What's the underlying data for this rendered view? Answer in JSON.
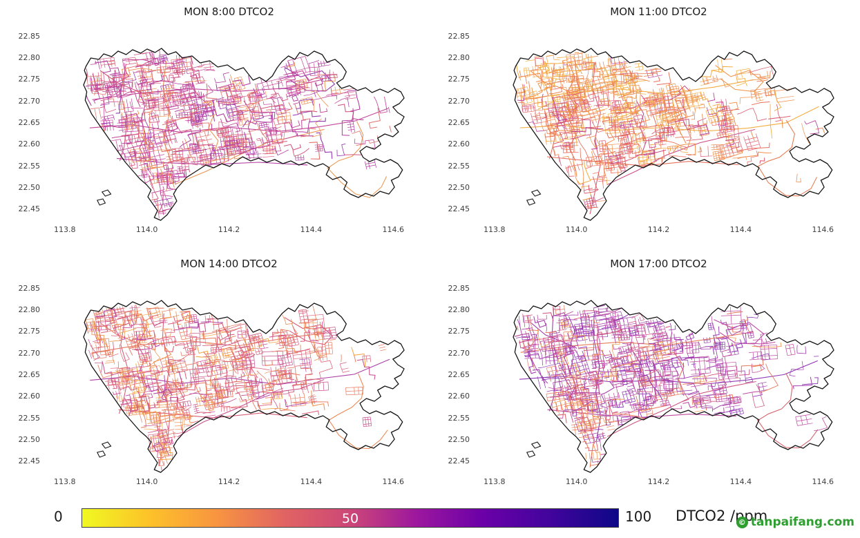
{
  "figure": {
    "colorbar": {
      "min_label": "0",
      "mid_label": "50",
      "max_label": "100",
      "unit_label": "DTCO2 /ppm",
      "gradient": [
        "#f0f921",
        "#fdc229",
        "#f89540",
        "#e16462",
        "#cc4778",
        "#9c179e",
        "#6a00a8",
        "#41049d",
        "#0d0887"
      ]
    },
    "watermark": {
      "text": "tanpaifang.com",
      "logo_glyph": "©",
      "color": "#2f9e31"
    }
  },
  "chart_data": [
    {
      "type": "heatmap",
      "title": "MON 8:00 DTCO2",
      "time": "MON 8:00",
      "variable": "DTCO2",
      "unit": "ppm",
      "xlim": [
        113.75,
        114.65
      ],
      "ylim": [
        22.42,
        22.88
      ],
      "xticks": [
        "113.8",
        "114.0",
        "114.2",
        "114.4",
        "114.6"
      ],
      "yticks": [
        "22.85",
        "22.80",
        "22.75",
        "22.70",
        "22.65",
        "22.60",
        "22.55",
        "22.50",
        "22.45"
      ],
      "colormap": "plasma reversed (yellow=0 to dark blue=100)",
      "value_min": 0,
      "value_max": 100,
      "approx_value_range_ppm": [
        40,
        70
      ],
      "road_colors": [
        {
          "c": "#c2459a",
          "w": 4
        },
        {
          "c": "#b03aa0",
          "w": 2
        },
        {
          "c": "#d4577f",
          "w": 3
        },
        {
          "c": "#e0706a",
          "w": 2
        },
        {
          "c": "#ef9355",
          "w": 1
        },
        {
          "c": "#9438ae",
          "w": 1
        }
      ],
      "peninsula_color": "#eb9a55"
    },
    {
      "type": "heatmap",
      "title": "MON 11:00 DTCO2",
      "time": "MON 11:00",
      "variable": "DTCO2",
      "unit": "ppm",
      "xlim": [
        113.75,
        114.65
      ],
      "ylim": [
        22.42,
        22.88
      ],
      "xticks": [
        "113.8",
        "114.0",
        "114.2",
        "114.4",
        "114.6"
      ],
      "yticks": [
        "22.85",
        "22.80",
        "22.75",
        "22.70",
        "22.65",
        "22.60",
        "22.55",
        "22.50",
        "22.45"
      ],
      "colormap": "plasma reversed (yellow=0 to dark blue=100)",
      "value_min": 0,
      "value_max": 100,
      "approx_value_range_ppm": [
        25,
        55
      ],
      "road_colors": [
        {
          "c": "#ef8e4d",
          "w": 3
        },
        {
          "c": "#e8705c",
          "w": 3
        },
        {
          "c": "#dd5f72",
          "w": 2
        },
        {
          "c": "#f3ad43",
          "w": 2
        },
        {
          "c": "#cb4f88",
          "w": 1.5
        },
        {
          "c": "#b53f9f",
          "w": 0.5
        }
      ],
      "north_colors": [
        "#f3ad43",
        "#f0974b",
        "#ea8556"
      ],
      "peninsula_color": "#e87f55"
    },
    {
      "type": "heatmap",
      "title": "MON 14:00 DTCO2",
      "time": "MON 14:00",
      "variable": "DTCO2",
      "unit": "ppm",
      "xlim": [
        113.75,
        114.65
      ],
      "ylim": [
        22.42,
        22.88
      ],
      "xticks": [
        "113.8",
        "114.0",
        "114.2",
        "114.4",
        "114.6"
      ],
      "yticks": [
        "22.85",
        "22.80",
        "22.75",
        "22.70",
        "22.65",
        "22.60",
        "22.55",
        "22.50",
        "22.45"
      ],
      "colormap": "plasma reversed (yellow=0 to dark blue=100)",
      "value_min": 0,
      "value_max": 100,
      "approx_value_range_ppm": [
        30,
        60
      ],
      "road_colors": [
        {
          "c": "#e77a5e",
          "w": 3
        },
        {
          "c": "#da5f79",
          "w": 3
        },
        {
          "c": "#ef9350",
          "w": 2
        },
        {
          "c": "#c94f8e",
          "w": 2
        },
        {
          "c": "#f2a847",
          "w": 1
        },
        {
          "c": "#ac3da4",
          "w": 0.5
        }
      ],
      "peninsula_color": "#ec8a55"
    },
    {
      "type": "heatmap",
      "title": "MON 17:00 DTCO2",
      "time": "MON 17:00",
      "variable": "DTCO2",
      "unit": "ppm",
      "xlim": [
        113.75,
        114.65
      ],
      "ylim": [
        22.42,
        22.88
      ],
      "xticks": [
        "113.8",
        "114.0",
        "114.2",
        "114.4",
        "114.6"
      ],
      "yticks": [
        "22.85",
        "22.80",
        "22.75",
        "22.70",
        "22.65",
        "22.60",
        "22.55",
        "22.50",
        "22.45"
      ],
      "colormap": "plasma reversed (yellow=0 to dark blue=100)",
      "value_min": 0,
      "value_max": 100,
      "approx_value_range_ppm": [
        50,
        85
      ],
      "road_colors": [
        {
          "c": "#a33fae",
          "w": 3
        },
        {
          "c": "#8d35b4",
          "w": 2
        },
        {
          "c": "#bd49a0",
          "w": 3
        },
        {
          "c": "#d05580",
          "w": 1.5
        },
        {
          "c": "#e77a5a",
          "w": 1.5
        },
        {
          "c": "#f09a4e",
          "w": 0.5
        }
      ],
      "sw_colors": [
        "#e8794f",
        "#ef9350",
        "#e2636b"
      ],
      "peninsula_color": "#d6656e"
    }
  ]
}
